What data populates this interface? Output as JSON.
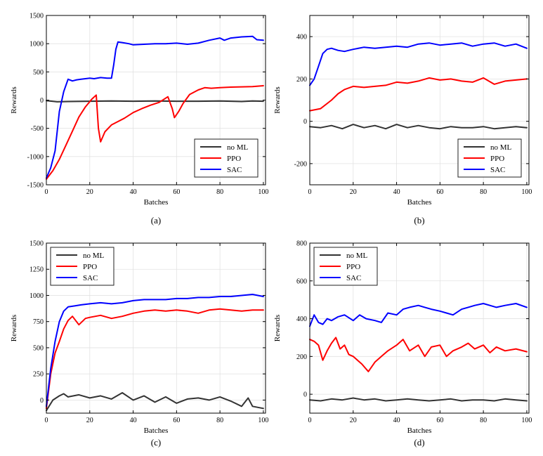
{
  "chart_data": [
    {
      "type": "line",
      "caption": "(a)",
      "xlabel": "Batches",
      "ylabel": "Rewards",
      "xlim": [
        0,
        101
      ],
      "ylim": [
        -1500,
        1500
      ],
      "xticks": [
        0,
        20,
        40,
        60,
        80,
        100
      ],
      "yticks": [
        -1500,
        -1000,
        -500,
        0,
        500,
        1000,
        1500
      ],
      "grid": true,
      "legend_position": "bottom-right",
      "series": [
        {
          "name": "no ML",
          "color": "#333333",
          "x": [
            0,
            5,
            10,
            20,
            30,
            40,
            50,
            60,
            70,
            80,
            90,
            95,
            100
          ],
          "y": [
            -10,
            -30,
            -25,
            -20,
            -15,
            -20,
            -15,
            -20,
            -20,
            -15,
            -25,
            -15,
            -20
          ]
        },
        {
          "name": "PPO",
          "color": "#ff0000",
          "x": [
            0,
            3,
            6,
            9,
            12,
            15,
            18,
            21,
            23,
            24,
            25,
            27,
            30,
            33,
            36,
            40,
            44,
            48,
            52,
            56,
            58,
            59,
            61,
            63,
            66,
            70,
            73,
            76,
            80,
            85,
            90,
            95,
            100
          ],
          "y": [
            -1400,
            -1250,
            -1050,
            -800,
            -550,
            -300,
            -120,
            20,
            90,
            -500,
            -740,
            -560,
            -440,
            -380,
            -320,
            -220,
            -150,
            -90,
            -40,
            60,
            -150,
            -310,
            -200,
            -60,
            100,
            180,
            220,
            210,
            220,
            230,
            235,
            240,
            255
          ]
        },
        {
          "name": "SAC",
          "color": "#0000ff",
          "x": [
            0,
            2,
            4,
            6,
            8,
            10,
            12,
            14,
            16,
            18,
            20,
            22,
            25,
            28,
            30,
            31,
            32,
            33,
            35,
            38,
            40,
            45,
            50,
            55,
            60,
            65,
            70,
            75,
            80,
            82,
            85,
            90,
            95,
            97,
            100
          ],
          "y": [
            -1380,
            -1200,
            -900,
            -200,
            150,
            370,
            340,
            360,
            370,
            380,
            390,
            380,
            400,
            390,
            390,
            620,
            900,
            1030,
            1020,
            1000,
            980,
            990,
            1000,
            1000,
            1010,
            990,
            1010,
            1060,
            1100,
            1060,
            1100,
            1120,
            1130,
            1070,
            1060
          ]
        }
      ]
    },
    {
      "type": "line",
      "caption": "(b)",
      "xlabel": "Batches",
      "ylabel": "Rewards",
      "xlim": [
        0,
        101
      ],
      "ylim": [
        -300,
        500
      ],
      "xticks": [
        0,
        20,
        40,
        60,
        80,
        100
      ],
      "yticks": [
        -200,
        0,
        200,
        400
      ],
      "grid": true,
      "legend_position": "bottom-right",
      "series": [
        {
          "name": "no ML",
          "color": "#333333",
          "x": [
            0,
            5,
            10,
            15,
            20,
            25,
            30,
            35,
            40,
            45,
            50,
            55,
            60,
            65,
            70,
            75,
            80,
            85,
            90,
            95,
            100
          ],
          "y": [
            -25,
            -30,
            -20,
            -35,
            -15,
            -30,
            -20,
            -35,
            -15,
            -30,
            -20,
            -30,
            -35,
            -25,
            -30,
            -30,
            -25,
            -35,
            -30,
            -25,
            -30
          ]
        },
        {
          "name": "PPO",
          "color": "#ff0000",
          "x": [
            0,
            5,
            10,
            13,
            16,
            20,
            25,
            30,
            35,
            40,
            45,
            50,
            55,
            60,
            65,
            70,
            75,
            80,
            85,
            90,
            95,
            100
          ],
          "y": [
            50,
            60,
            100,
            130,
            150,
            165,
            160,
            165,
            170,
            185,
            180,
            190,
            205,
            195,
            200,
            190,
            185,
            205,
            175,
            190,
            195,
            200
          ]
        },
        {
          "name": "SAC",
          "color": "#0000ff",
          "x": [
            0,
            2,
            4,
            6,
            8,
            10,
            13,
            16,
            20,
            25,
            30,
            35,
            40,
            45,
            50,
            55,
            60,
            65,
            70,
            75,
            80,
            85,
            90,
            95,
            100
          ],
          "y": [
            170,
            200,
            260,
            320,
            340,
            345,
            335,
            330,
            340,
            350,
            345,
            350,
            355,
            350,
            365,
            370,
            360,
            365,
            370,
            355,
            365,
            370,
            355,
            365,
            345
          ]
        }
      ]
    },
    {
      "type": "line",
      "caption": "(c)",
      "xlabel": "Batches",
      "ylabel": "Rewards",
      "xlim": [
        0,
        101
      ],
      "ylim": [
        -125,
        1500
      ],
      "xticks": [
        0,
        20,
        40,
        60,
        80,
        100
      ],
      "yticks": [
        0,
        250,
        500,
        750,
        1000,
        1250,
        1500
      ],
      "grid": true,
      "legend_position": "top-left",
      "series": [
        {
          "name": "no ML",
          "color": "#333333",
          "x": [
            0,
            3,
            6,
            8,
            10,
            15,
            20,
            25,
            30,
            35,
            40,
            45,
            50,
            55,
            60,
            65,
            70,
            75,
            80,
            85,
            90,
            93,
            95,
            100
          ],
          "y": [
            -100,
            0,
            40,
            60,
            30,
            50,
            20,
            40,
            10,
            70,
            0,
            40,
            -20,
            30,
            -30,
            10,
            20,
            0,
            30,
            -10,
            -60,
            20,
            -60,
            -80
          ]
        },
        {
          "name": "PPO",
          "color": "#ff0000",
          "x": [
            0,
            2,
            4,
            6,
            8,
            10,
            12,
            15,
            18,
            20,
            25,
            30,
            35,
            40,
            45,
            50,
            55,
            60,
            65,
            70,
            75,
            80,
            85,
            90,
            95,
            100
          ],
          "y": [
            -80,
            250,
            450,
            560,
            680,
            760,
            800,
            720,
            780,
            790,
            810,
            780,
            800,
            830,
            850,
            860,
            850,
            860,
            850,
            830,
            860,
            870,
            860,
            850,
            860,
            860
          ]
        },
        {
          "name": "SAC",
          "color": "#0000ff",
          "x": [
            0,
            2,
            4,
            6,
            8,
            10,
            13,
            16,
            20,
            25,
            30,
            35,
            40,
            45,
            50,
            55,
            60,
            65,
            70,
            75,
            80,
            85,
            90,
            95,
            100
          ],
          "y": [
            -60,
            300,
            560,
            750,
            850,
            890,
            900,
            910,
            920,
            930,
            920,
            930,
            950,
            960,
            960,
            960,
            970,
            970,
            980,
            980,
            990,
            990,
            1000,
            1010,
            990
          ]
        }
      ]
    },
    {
      "type": "line",
      "caption": "(d)",
      "xlabel": "Batches",
      "ylabel": "Rewards",
      "xlim": [
        0,
        101
      ],
      "ylim": [
        -100,
        800
      ],
      "xticks": [
        0,
        20,
        40,
        60,
        80,
        100
      ],
      "yticks": [
        0,
        200,
        400,
        600,
        800
      ],
      "grid": true,
      "legend_position": "top-left",
      "series": [
        {
          "name": "no ML",
          "color": "#333333",
          "x": [
            0,
            5,
            10,
            15,
            20,
            25,
            30,
            35,
            40,
            45,
            50,
            55,
            60,
            65,
            70,
            75,
            80,
            85,
            90,
            95,
            100
          ],
          "y": [
            -30,
            -35,
            -25,
            -30,
            -20,
            -30,
            -25,
            -35,
            -30,
            -25,
            -30,
            -35,
            -30,
            -25,
            -35,
            -30,
            -30,
            -35,
            -25,
            -30,
            -35
          ]
        },
        {
          "name": "PPO",
          "color": "#ff0000",
          "x": [
            0,
            2,
            4,
            6,
            8,
            10,
            12,
            14,
            16,
            18,
            20,
            22,
            24,
            27,
            30,
            33,
            36,
            40,
            43,
            46,
            50,
            53,
            56,
            60,
            63,
            66,
            70,
            73,
            76,
            80,
            83,
            86,
            90,
            95,
            100
          ],
          "y": [
            290,
            280,
            260,
            180,
            230,
            270,
            300,
            240,
            260,
            210,
            200,
            180,
            160,
            120,
            170,
            200,
            230,
            260,
            290,
            230,
            260,
            200,
            250,
            260,
            200,
            230,
            250,
            270,
            240,
            260,
            220,
            250,
            230,
            240,
            225
          ]
        },
        {
          "name": "SAC",
          "color": "#0000ff",
          "x": [
            0,
            2,
            4,
            6,
            8,
            10,
            13,
            16,
            20,
            23,
            26,
            30,
            33,
            36,
            40,
            43,
            46,
            50,
            53,
            56,
            60,
            63,
            66,
            70,
            73,
            76,
            80,
            83,
            86,
            90,
            95,
            100
          ],
          "y": [
            360,
            420,
            380,
            370,
            400,
            390,
            410,
            420,
            390,
            420,
            400,
            390,
            380,
            430,
            420,
            450,
            460,
            470,
            460,
            450,
            440,
            430,
            420,
            450,
            460,
            470,
            480,
            470,
            460,
            470,
            480,
            460
          ]
        }
      ]
    }
  ]
}
